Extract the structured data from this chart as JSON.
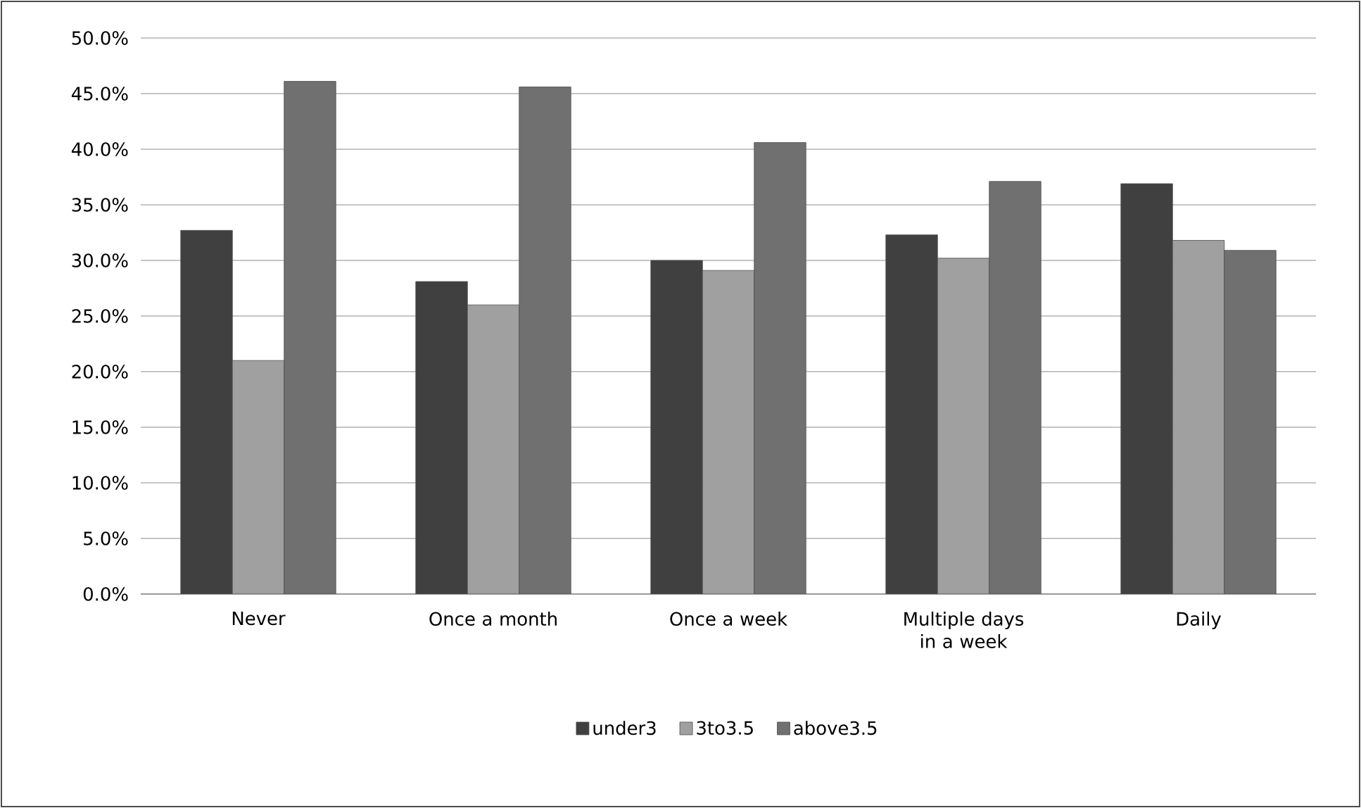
{
  "chart_data": {
    "type": "bar",
    "categories": [
      "Never",
      "Once a month",
      "Once a week",
      "Multiple days in a week",
      "Daily"
    ],
    "series": [
      {
        "name": "under3",
        "color": "#404040",
        "values": [
          32.7,
          28.1,
          30.0,
          32.3,
          36.9
        ]
      },
      {
        "name": "3to3.5",
        "color": "#a0a0a0",
        "values": [
          21.0,
          26.0,
          29.1,
          30.2,
          31.8
        ]
      },
      {
        "name": "above3.5",
        "color": "#707070",
        "values": [
          46.1,
          45.6,
          40.6,
          37.1,
          30.9
        ]
      }
    ],
    "ylim": [
      0,
      50
    ],
    "yticks": [
      {
        "value": 0,
        "label": "0.0%"
      },
      {
        "value": 5,
        "label": "5.0%"
      },
      {
        "value": 10,
        "label": "10.0%"
      },
      {
        "value": 15,
        "label": "15.0%"
      },
      {
        "value": 20,
        "label": "20.0%"
      },
      {
        "value": 25,
        "label": "25.0%"
      },
      {
        "value": 30,
        "label": "30.0%"
      },
      {
        "value": 35,
        "label": "35.0%"
      },
      {
        "value": 40,
        "label": "40.0%"
      },
      {
        "value": 45,
        "label": "45.0%"
      },
      {
        "value": 50,
        "label": "50.0%"
      }
    ],
    "grid": "y",
    "legend": "bottom"
  }
}
